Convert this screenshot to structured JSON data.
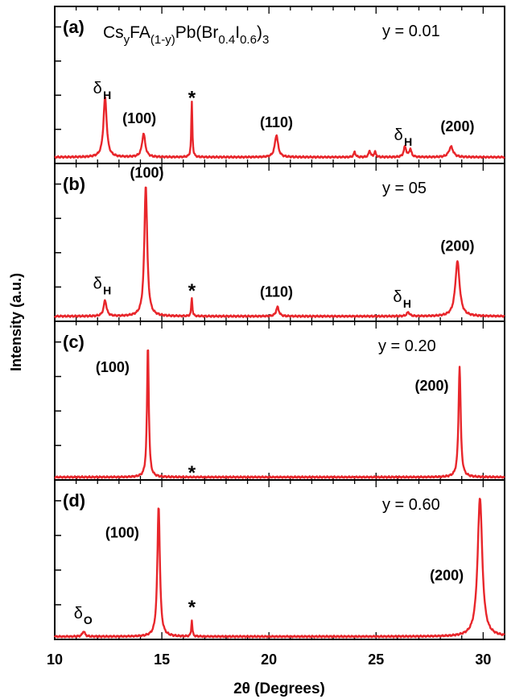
{
  "chart_data": {
    "type": "line",
    "xlabel": "2θ (Degrees)",
    "ylabel": "Intensity (a.u.)",
    "xlim": [
      10,
      31
    ],
    "x_ticks": [
      10,
      15,
      20,
      25,
      30
    ],
    "composition_title": {
      "base": "Cs",
      "sub1": "y",
      "mid1": "FA",
      "sub2": "(1-y)",
      "mid2": "Pb(Br",
      "sub3": "0.4",
      "mid3": "I",
      "sub4": "0.6",
      "mid4": ")",
      "sub5": "3"
    },
    "series_color": "#e8262b",
    "panels": [
      {
        "label": "(a)",
        "y_value": "y = 0.01",
        "baseline": 0.03,
        "peaks": [
          {
            "x": 12.35,
            "h": 0.46,
            "w": 0.09
          },
          {
            "x": 14.15,
            "h": 0.18,
            "w": 0.09
          },
          {
            "x": 16.4,
            "h": 0.42,
            "w": 0.03
          },
          {
            "x": 20.35,
            "h": 0.17,
            "w": 0.09
          },
          {
            "x": 24.0,
            "h": 0.04,
            "w": 0.05
          },
          {
            "x": 24.7,
            "h": 0.05,
            "w": 0.05
          },
          {
            "x": 24.95,
            "h": 0.04,
            "w": 0.05
          },
          {
            "x": 26.35,
            "h": 0.08,
            "w": 0.07
          },
          {
            "x": 26.6,
            "h": 0.06,
            "w": 0.06
          },
          {
            "x": 28.5,
            "h": 0.08,
            "w": 0.12
          }
        ],
        "annotations": [
          {
            "text": "δ",
            "sub": "H",
            "x": 12.3,
            "y": 0.52
          },
          {
            "text": "(100)",
            "x": 13.95,
            "y": 0.29
          },
          {
            "text": "*",
            "x": 16.4,
            "y": 0.51
          },
          {
            "text": "(110)",
            "x": 20.35,
            "y": 0.26
          },
          {
            "text": "δ",
            "sub": "H",
            "x": 26.35,
            "y": 0.16
          },
          {
            "text": "(200)",
            "x": 28.8,
            "y": 0.23
          }
        ]
      },
      {
        "label": "(b)",
        "y_value": "y = 05",
        "baseline": 0.02,
        "peaks": [
          {
            "x": 12.35,
            "h": 0.12,
            "w": 0.08
          },
          {
            "x": 14.25,
            "h": 1.0,
            "w": 0.08
          },
          {
            "x": 16.4,
            "h": 0.14,
            "w": 0.03
          },
          {
            "x": 20.4,
            "h": 0.07,
            "w": 0.08
          },
          {
            "x": 26.5,
            "h": 0.03,
            "w": 0.08
          },
          {
            "x": 28.8,
            "h": 0.42,
            "w": 0.12
          }
        ],
        "annotations": [
          {
            "text": "(100)",
            "x": 14.3,
            "y": 1.08
          },
          {
            "text": "δ",
            "sub": "H",
            "x": 12.3,
            "y": 0.23
          },
          {
            "text": "*",
            "x": 16.4,
            "y": 0.24
          },
          {
            "text": "(110)",
            "x": 20.35,
            "y": 0.17
          },
          {
            "text": "δ",
            "sub": "H",
            "x": 26.3,
            "y": 0.13
          },
          {
            "text": "(200)",
            "x": 28.8,
            "y": 0.52
          }
        ]
      },
      {
        "label": "(c)",
        "y_value": "y = 0.20",
        "baseline": 0.003,
        "peaks": [
          {
            "x": 14.35,
            "h": 1.0,
            "w": 0.05
          },
          {
            "x": 28.9,
            "h": 0.84,
            "w": 0.06
          }
        ],
        "annotations": [
          {
            "text": "(100)",
            "x": 12.7,
            "y": 0.8
          },
          {
            "text": "*",
            "x": 16.4,
            "y": 0.06
          },
          {
            "text": "(200)",
            "x": 27.6,
            "y": 0.66
          }
        ]
      },
      {
        "label": "(d)",
        "y_value": "y = 0.60",
        "baseline": 0.003,
        "peaks": [
          {
            "x": 11.35,
            "h": 0.04,
            "w": 0.07
          },
          {
            "x": 14.85,
            "h": 0.99,
            "w": 0.07
          },
          {
            "x": 16.4,
            "h": 0.12,
            "w": 0.03
          },
          {
            "x": 29.85,
            "h": 1.05,
            "w": 0.13
          }
        ],
        "annotations": [
          {
            "text": "(100)",
            "x": 13.15,
            "y": 0.75
          },
          {
            "text": "δ",
            "sub": "O",
            "x": 11.4,
            "y": 0.14
          },
          {
            "text": "*",
            "x": 16.4,
            "y": 0.25
          },
          {
            "text": "(200)",
            "x": 28.3,
            "y": 0.43
          }
        ]
      }
    ]
  }
}
